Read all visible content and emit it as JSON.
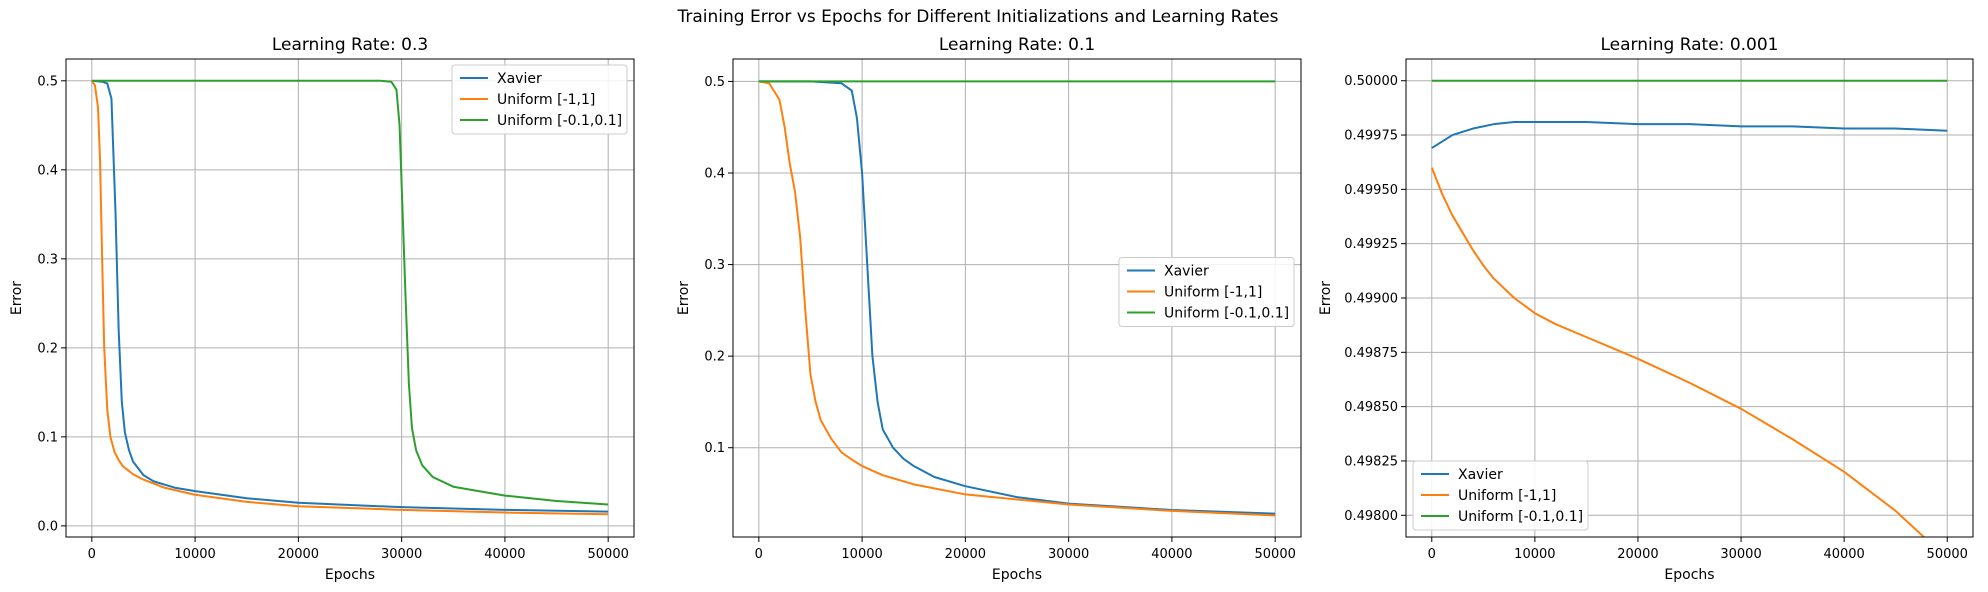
{
  "figure": {
    "suptitle": "Training Error vs Epochs for Different Initializations and Learning Rates"
  },
  "chart_data": [
    {
      "type": "line",
      "title": "Learning Rate: 0.3",
      "xlabel": "Epochs",
      "ylabel": "Error",
      "xlim": [
        -2500,
        52500
      ],
      "ylim": [
        -0.0125,
        0.5245
      ],
      "xticks": [
        0,
        10000,
        20000,
        30000,
        40000,
        50000
      ],
      "yticks": [
        0.0,
        0.1,
        0.2,
        0.3,
        0.4,
        0.5
      ],
      "xtick_labels": [
        "0",
        "10000",
        "20000",
        "30000",
        "40000",
        "50000"
      ],
      "ytick_labels": [
        "0.0",
        "0.1",
        "0.2",
        "0.3",
        "0.4",
        "0.5"
      ],
      "grid": true,
      "legend": "top-right",
      "series": [
        {
          "name": "Xavier",
          "color": "#1f77b4",
          "x": [
            0,
            1000,
            1500,
            1900,
            2300,
            2600,
            2900,
            3200,
            3600,
            4000,
            5000,
            6000,
            8000,
            10000,
            15000,
            20000,
            30000,
            40000,
            50000
          ],
          "y": [
            0.5,
            0.499,
            0.497,
            0.48,
            0.35,
            0.22,
            0.14,
            0.105,
            0.085,
            0.072,
            0.057,
            0.05,
            0.043,
            0.039,
            0.031,
            0.026,
            0.021,
            0.018,
            0.016
          ]
        },
        {
          "name": "Uniform [-1,1]",
          "color": "#ff7f0e",
          "x": [
            0,
            300,
            600,
            800,
            1000,
            1200,
            1500,
            1800,
            2200,
            2600,
            3000,
            4000,
            5000,
            7000,
            10000,
            15000,
            20000,
            30000,
            40000,
            50000
          ],
          "y": [
            0.5,
            0.495,
            0.47,
            0.41,
            0.3,
            0.2,
            0.13,
            0.1,
            0.083,
            0.074,
            0.067,
            0.058,
            0.052,
            0.043,
            0.035,
            0.027,
            0.022,
            0.018,
            0.015,
            0.013
          ]
        },
        {
          "name": "Uniform [-0.1,0.1]",
          "color": "#2ca02c",
          "x": [
            0,
            10000,
            20000,
            28000,
            29000,
            29500,
            29800,
            30100,
            30400,
            30700,
            31000,
            31400,
            32000,
            33000,
            35000,
            40000,
            45000,
            50000
          ],
          "y": [
            0.5,
            0.5,
            0.5,
            0.5,
            0.499,
            0.49,
            0.45,
            0.35,
            0.25,
            0.16,
            0.11,
            0.085,
            0.068,
            0.055,
            0.044,
            0.034,
            0.028,
            0.024
          ]
        }
      ]
    },
    {
      "type": "line",
      "title": "Learning Rate: 0.1",
      "xlabel": "Epochs",
      "ylabel": "Error",
      "xlim": [
        -2500,
        52500
      ],
      "ylim": [
        0.0025,
        0.5245
      ],
      "xticks": [
        0,
        10000,
        20000,
        30000,
        40000,
        50000
      ],
      "yticks": [
        0.1,
        0.2,
        0.3,
        0.4,
        0.5
      ],
      "xtick_labels": [
        "0",
        "10000",
        "20000",
        "30000",
        "40000",
        "50000"
      ],
      "ytick_labels": [
        "0.1",
        "0.2",
        "0.3",
        "0.4",
        "0.5"
      ],
      "grid": true,
      "legend": "center-right",
      "series": [
        {
          "name": "Xavier",
          "color": "#1f77b4",
          "x": [
            0,
            5000,
            8000,
            9000,
            9500,
            10000,
            10500,
            11000,
            11500,
            12000,
            13000,
            14000,
            15000,
            17000,
            20000,
            25000,
            30000,
            40000,
            50000
          ],
          "y": [
            0.5,
            0.5,
            0.498,
            0.49,
            0.46,
            0.4,
            0.3,
            0.2,
            0.15,
            0.12,
            0.1,
            0.088,
            0.08,
            0.068,
            0.058,
            0.046,
            0.039,
            0.032,
            0.028
          ]
        },
        {
          "name": "Uniform [-1,1]",
          "color": "#ff7f0e",
          "x": [
            0,
            1000,
            2000,
            2500,
            3000,
            3500,
            4000,
            4500,
            5000,
            5500,
            6000,
            7000,
            8000,
            9000,
            10000,
            12000,
            15000,
            20000,
            30000,
            40000,
            50000
          ],
          "y": [
            0.5,
            0.498,
            0.48,
            0.45,
            0.41,
            0.38,
            0.33,
            0.25,
            0.18,
            0.15,
            0.13,
            0.11,
            0.095,
            0.087,
            0.08,
            0.07,
            0.06,
            0.049,
            0.038,
            0.031,
            0.026
          ]
        },
        {
          "name": "Uniform [-0.1,0.1]",
          "color": "#2ca02c",
          "x": [
            0,
            50000
          ],
          "y": [
            0.5,
            0.5
          ]
        }
      ]
    },
    {
      "type": "line",
      "title": "Learning Rate: 0.001",
      "xlabel": "Epochs",
      "ylabel": "Error",
      "xlim": [
        -2500,
        52500
      ],
      "ylim": [
        0.4979,
        0.5001
      ],
      "xticks": [
        0,
        10000,
        20000,
        30000,
        40000,
        50000
      ],
      "yticks": [
        0.498,
        0.49825,
        0.4985,
        0.49875,
        0.499,
        0.49925,
        0.4995,
        0.49975,
        0.5
      ],
      "xtick_labels": [
        "0",
        "10000",
        "20000",
        "30000",
        "40000",
        "50000"
      ],
      "ytick_labels": [
        "0.49800",
        "0.49825",
        "0.49850",
        "0.49875",
        "0.49900",
        "0.49925",
        "0.49950",
        "0.49975",
        "0.50000"
      ],
      "grid": true,
      "legend": "bottom-left",
      "series": [
        {
          "name": "Xavier",
          "color": "#1f77b4",
          "x": [
            0,
            2000,
            4000,
            6000,
            8000,
            10000,
            12000,
            15000,
            20000,
            25000,
            30000,
            35000,
            40000,
            45000,
            50000
          ],
          "y": [
            0.49969,
            0.49975,
            0.49978,
            0.4998,
            0.49981,
            0.49981,
            0.49981,
            0.49981,
            0.4998,
            0.4998,
            0.49979,
            0.49979,
            0.49978,
            0.49978,
            0.49977
          ]
        },
        {
          "name": "Uniform [-1,1]",
          "color": "#ff7f0e",
          "x": [
            0,
            1000,
            2000,
            3000,
            4000,
            5000,
            6000,
            8000,
            10000,
            12000,
            15000,
            20000,
            25000,
            30000,
            35000,
            40000,
            45000,
            50000
          ],
          "y": [
            0.4996,
            0.49948,
            0.49938,
            0.4993,
            0.49922,
            0.49915,
            0.49909,
            0.499,
            0.49893,
            0.49888,
            0.49882,
            0.49872,
            0.49861,
            0.49849,
            0.49835,
            0.4982,
            0.49802,
            0.4978
          ]
        },
        {
          "name": "Uniform [-0.1,0.1]",
          "color": "#2ca02c",
          "x": [
            0,
            50000
          ],
          "y": [
            0.5,
            0.5
          ]
        }
      ]
    }
  ]
}
